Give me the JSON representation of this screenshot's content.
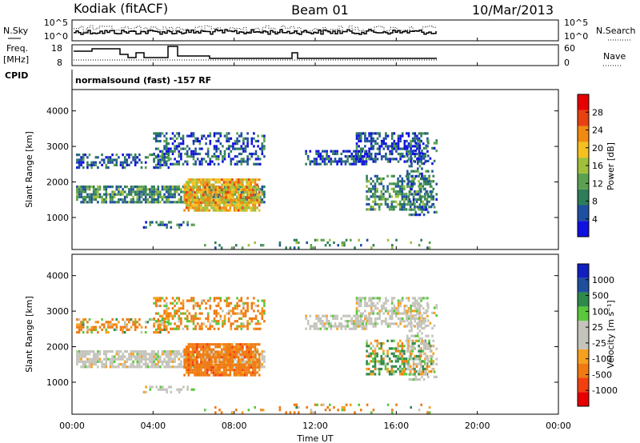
{
  "header": {
    "left_title": "Kodiak (fitACF)",
    "center_title": "Beam 01",
    "right_title": "10/Mar/2013"
  },
  "status_strip": {
    "nsky_label": "N.Sky",
    "nsky_ticks": [
      "10^5",
      "10^0"
    ],
    "nsearch_label": "N.Search",
    "nsearch_ticks": [
      "10^5",
      "10^0"
    ],
    "freq_label_1": "Freq.",
    "freq_label_2": "[MHz]",
    "freq_ticks": [
      "18",
      "8"
    ],
    "nave_label": "Nave",
    "nave_ticks": [
      "60",
      "0"
    ],
    "cpid_label": "CPID",
    "cpid_text": "normalsound (fast) -157 RF"
  },
  "colors": {
    "power_scale": [
      "#1010e0",
      "#1f4fa0",
      "#2e7d5a",
      "#5aa050",
      "#a0c03a",
      "#f5c020",
      "#f08a10",
      "#e84010",
      "#e60000"
    ],
    "velocity_scale": [
      "#e60000",
      "#f24010",
      "#f07a10",
      "#f6a020",
      "#c4c4bc",
      "#c4c4bc",
      "#5ac83a",
      "#2e8a4a",
      "#1f4f9a",
      "#1020c0"
    ]
  },
  "chart_data": [
    {
      "type": "heatmap",
      "title": "Power",
      "xlabel": "",
      "ylabel": "Slant Range [km]",
      "x_ticks": [
        "00:00",
        "04:00",
        "08:00",
        "12:00",
        "16:00",
        "20:00",
        "00:00"
      ],
      "y_ticks": [
        1000,
        2000,
        3000,
        4000
      ],
      "ylim": [
        100,
        4600
      ],
      "xlim_hours": [
        0,
        24
      ],
      "colorbar_label": "Power [dB]",
      "colorbar_ticks": [
        "28",
        "24",
        "20",
        "16",
        "12",
        "8",
        "4"
      ],
      "regions": [
        {
          "t": [
            0.2,
            9.5
          ],
          "r": [
            1400,
            1900
          ],
          "v": 10,
          "d": 0.75
        },
        {
          "t": [
            5.5,
            9.2
          ],
          "r": [
            1200,
            2100
          ],
          "v": 20,
          "d": 0.85
        },
        {
          "t": [
            0.2,
            4.8
          ],
          "r": [
            2400,
            2800
          ],
          "v": 6,
          "d": 0.5
        },
        {
          "t": [
            4.0,
            9.5
          ],
          "r": [
            2500,
            3400
          ],
          "v": 6,
          "d": 0.45
        },
        {
          "t": [
            11.5,
            14.5
          ],
          "r": [
            2500,
            2900
          ],
          "v": 5,
          "d": 0.6
        },
        {
          "t": [
            14.0,
            17.5
          ],
          "r": [
            2600,
            3400
          ],
          "v": 5,
          "d": 0.55
        },
        {
          "t": [
            14.5,
            17.8
          ],
          "r": [
            1200,
            2200
          ],
          "v": 10,
          "d": 0.5
        },
        {
          "t": [
            16.5,
            18.0
          ],
          "r": [
            1100,
            3200
          ],
          "v": 7,
          "d": 0.35
        },
        {
          "t": [
            3.5,
            6.0
          ],
          "r": [
            700,
            900
          ],
          "v": 8,
          "d": 0.4
        },
        {
          "t": [
            6.0,
            18.0
          ],
          "r": [
            150,
            400
          ],
          "v": 10,
          "d": 0.15
        }
      ]
    },
    {
      "type": "heatmap",
      "title": "Velocity",
      "xlabel": "Time UT",
      "ylabel": "Slant Range [km]",
      "x_ticks": [
        "00:00",
        "04:00",
        "08:00",
        "12:00",
        "16:00",
        "20:00",
        "00:00"
      ],
      "y_ticks": [
        1000,
        2000,
        3000,
        4000
      ],
      "ylim": [
        100,
        4600
      ],
      "xlim_hours": [
        0,
        24
      ],
      "colorbar_label": "Velocity [m s⁻¹]",
      "colorbar_ticks": [
        "1000",
        "500",
        "100",
        "25",
        "-25",
        "-100",
        "-500",
        "-1000"
      ],
      "regions": [
        {
          "t": [
            0.2,
            9.5
          ],
          "r": [
            1400,
            1900
          ],
          "v": 0,
          "d": 0.75
        },
        {
          "t": [
            5.5,
            9.2
          ],
          "r": [
            1200,
            2100
          ],
          "v": -300,
          "d": 0.85
        },
        {
          "t": [
            0.2,
            4.8
          ],
          "r": [
            2400,
            2800
          ],
          "v": -120,
          "d": 0.5
        },
        {
          "t": [
            4.0,
            9.5
          ],
          "r": [
            2500,
            3400
          ],
          "v": -150,
          "d": 0.45
        },
        {
          "t": [
            11.5,
            14.5
          ],
          "r": [
            2500,
            2900
          ],
          "v": 0,
          "d": 0.6
        },
        {
          "t": [
            14.0,
            17.5
          ],
          "r": [
            2600,
            3400
          ],
          "v": 0,
          "d": 0.55
        },
        {
          "t": [
            14.5,
            17.8
          ],
          "r": [
            1200,
            2200
          ],
          "v": 80,
          "d": 0.5
        },
        {
          "t": [
            16.5,
            18.0
          ],
          "r": [
            1100,
            3200
          ],
          "v": 0,
          "d": 0.35
        },
        {
          "t": [
            3.5,
            6.0
          ],
          "r": [
            700,
            900
          ],
          "v": 0,
          "d": 0.4
        },
        {
          "t": [
            6.0,
            18.0
          ],
          "r": [
            150,
            400
          ],
          "v": -120,
          "d": 0.15
        }
      ]
    }
  ]
}
